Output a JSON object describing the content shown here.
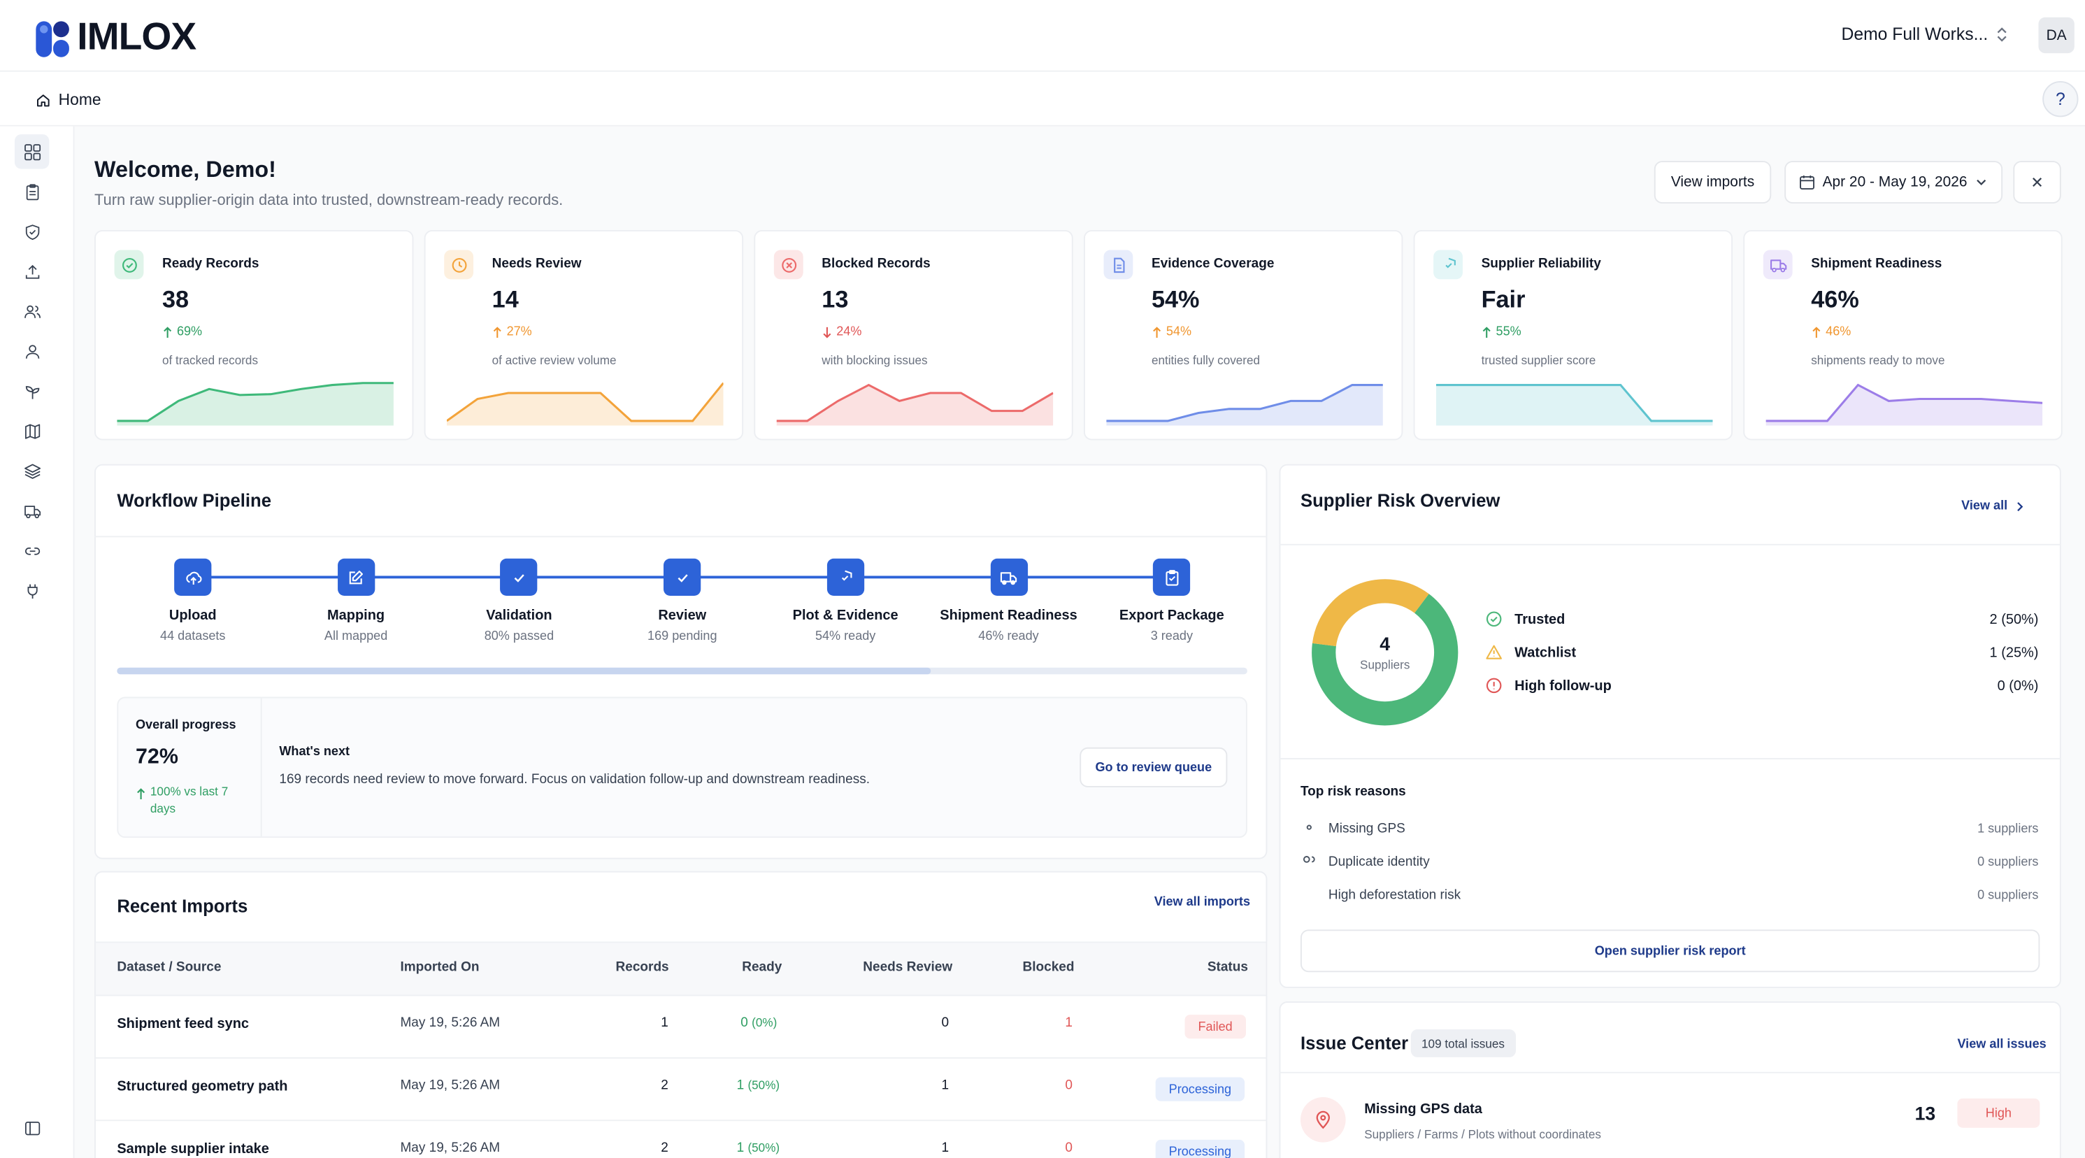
{
  "app": {
    "logo_text": "IMLOX",
    "workspace": "Demo Full Works...",
    "avatar": "DA"
  },
  "breadcrumb": {
    "home": "Home"
  },
  "help_label": "?",
  "header": {
    "title": "Welcome, Demo!",
    "subtitle": "Turn raw supplier-origin data into trusted, downstream-ready records.",
    "view_imports": "View imports",
    "date_range": "Apr 20 - May 19, 2026"
  },
  "kpis": [
    {
      "label": "Ready Records",
      "value": "38",
      "delta": "69%",
      "direction": "up",
      "note": "of tracked records",
      "color": "#3fb97a",
      "icon": "check-circle-icon",
      "spark": [
        0.05,
        0.05,
        0.55,
        0.85,
        0.7,
        0.72,
        0.85,
        0.95,
        1,
        1
      ]
    },
    {
      "label": "Needs Review",
      "value": "14",
      "delta": "27%",
      "direction": "up",
      "note": "of active review volume",
      "color": "#f3a33a",
      "icon": "clock-icon",
      "spark": [
        0.05,
        0.6,
        0.75,
        0.75,
        0.75,
        0.75,
        0.05,
        0.05,
        0.05,
        1
      ]
    },
    {
      "label": "Blocked Records",
      "value": "13",
      "delta": "24%",
      "direction": "down",
      "note": "with blocking issues",
      "color": "#ec6a6a",
      "icon": "x-circle-icon",
      "spark": [
        0.05,
        0.05,
        0.55,
        0.95,
        0.55,
        0.75,
        0.75,
        0.3,
        0.3,
        0.75
      ]
    },
    {
      "label": "Evidence Coverage",
      "value": "54%",
      "delta": "54%",
      "direction": "up",
      "note": "entities fully covered",
      "color": "#6f8de8",
      "icon": "document-icon",
      "spark": [
        0.05,
        0.05,
        0.05,
        0.25,
        0.35,
        0.35,
        0.55,
        0.55,
        0.95,
        0.95
      ]
    },
    {
      "label": "Supplier Reliability",
      "value": "Fair",
      "delta": "55%",
      "direction": "up",
      "note": "trusted supplier score",
      "color": "#5fc4cf",
      "icon": "shield-check-icon",
      "spark": [
        0.95,
        0.95,
        0.95,
        0.95,
        0.95,
        0.95,
        0.95,
        0.05,
        0.05,
        0.05
      ]
    },
    {
      "label": "Shipment Readiness",
      "value": "46%",
      "delta": "46%",
      "direction": "up",
      "note": "shipments ready to move",
      "color": "#9c7de8",
      "icon": "truck-icon",
      "spark": [
        0.05,
        0.05,
        0.05,
        0.95,
        0.55,
        0.6,
        0.6,
        0.6,
        0.55,
        0.5
      ]
    }
  ],
  "workflow": {
    "title": "Workflow Pipeline",
    "steps": [
      {
        "name": "Upload",
        "sub": "44 datasets",
        "icon": "upload-cloud-icon"
      },
      {
        "name": "Mapping",
        "sub": "All mapped",
        "icon": "edit-icon"
      },
      {
        "name": "Validation",
        "sub": "80% passed",
        "icon": "check-icon"
      },
      {
        "name": "Review",
        "sub": "169 pending",
        "icon": "check-icon"
      },
      {
        "name": "Plot & Evidence",
        "sub": "54% ready",
        "icon": "shield-icon"
      },
      {
        "name": "Shipment Readiness",
        "sub": "46% ready",
        "icon": "truck-icon"
      },
      {
        "name": "Export Package",
        "sub": "3 ready",
        "icon": "clipboard-icon"
      }
    ],
    "progress_fraction": 0.72,
    "overall_label": "Overall progress",
    "overall_value": "72%",
    "overall_delta": "100% vs last 7 days",
    "next_title": "What's next",
    "next_text": "169 records need review to move forward. Focus on validation follow-up and downstream readiness.",
    "next_button": "Go to review queue"
  },
  "imports": {
    "title": "Recent Imports",
    "view_all": "View all imports",
    "columns": [
      "Dataset / Source",
      "Imported On",
      "Records",
      "Ready",
      "Needs Review",
      "Blocked",
      "Status"
    ],
    "rows": [
      {
        "name": "Shipment feed sync",
        "date": "May 19, 5:26 AM",
        "records": "1",
        "ready": "0",
        "ready_pct": "(0%)",
        "review": "0",
        "blocked": "1",
        "status": "Failed"
      },
      {
        "name": "Structured geometry path",
        "date": "May 19, 5:26 AM",
        "records": "2",
        "ready": "1",
        "ready_pct": "(50%)",
        "review": "1",
        "blocked": "0",
        "status": "Processing"
      },
      {
        "name": "Sample supplier intake",
        "date": "May 19, 5:26 AM",
        "records": "2",
        "ready": "1",
        "ready_pct": "(50%)",
        "review": "1",
        "blocked": "0",
        "status": "Processing"
      }
    ]
  },
  "supplier_risk": {
    "title": "Supplier Risk Overview",
    "view_all": "View all",
    "total": "4",
    "total_label": "Suppliers",
    "segments": [
      {
        "label": "Trusted",
        "value": "2 (50%)",
        "share": 0.5,
        "color": "#4cb77a"
      },
      {
        "label": "Watchlist",
        "value": "1 (25%)",
        "share": 0.25,
        "color": "#efb847"
      },
      {
        "label": "High follow-up",
        "value": "0 (0%)",
        "share": 0.0,
        "color": "#e05656"
      }
    ],
    "reasons_title": "Top risk reasons",
    "reasons": [
      {
        "label": "Missing GPS",
        "value": "1 suppliers",
        "icon": "map-pin-icon"
      },
      {
        "label": "Duplicate identity",
        "value": "0 suppliers",
        "icon": "users-icon"
      },
      {
        "label": "High deforestation risk",
        "value": "0 suppliers",
        "icon": "leaf-icon"
      }
    ],
    "report_button": "Open supplier risk report"
  },
  "issues": {
    "title": "Issue Center",
    "total_badge": "109 total issues",
    "view_all": "View all issues",
    "items": [
      {
        "title": "Missing GPS data",
        "sub": "Suppliers / Farms / Plots without coordinates",
        "count": "13",
        "severity": "High"
      }
    ]
  }
}
